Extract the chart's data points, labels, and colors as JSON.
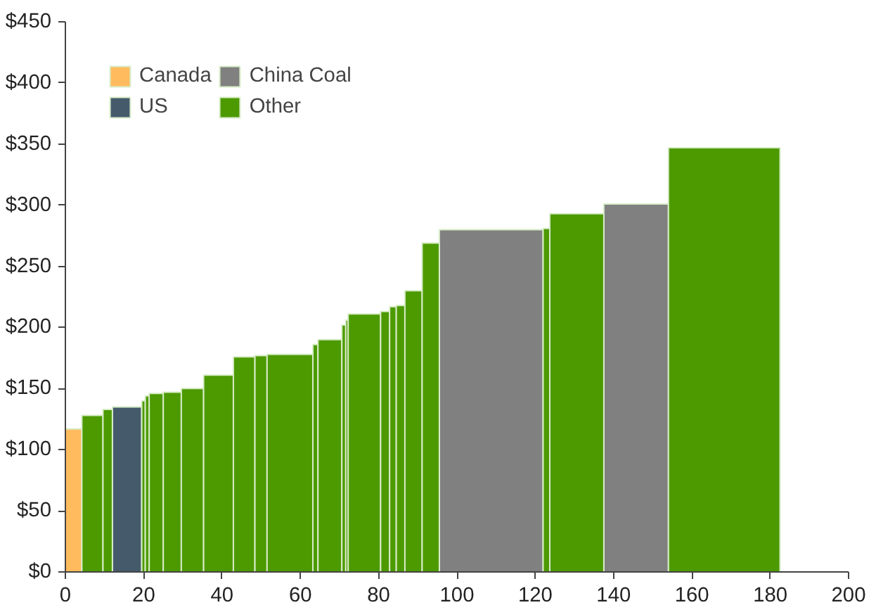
{
  "chart_data": {
    "type": "histogram",
    "bins": [
      0,
      4.2,
      9.6,
      12,
      19.5,
      20.4,
      21.4,
      25,
      29.6,
      35.3,
      42.9,
      48.4,
      51.5,
      63.2,
      64.5,
      70.6,
      71.6,
      72.2,
      80.5,
      82.8,
      84.5,
      86.7,
      91.1,
      95.5,
      122,
      123.7,
      137.5,
      154,
      182.5
    ],
    "series": [
      {
        "name": "Canada",
        "color": "#ffbb5e",
        "values": [
          117,
          null,
          null,
          null,
          null,
          null,
          null,
          null,
          null,
          null,
          null,
          null,
          null,
          null,
          null,
          null,
          null,
          null,
          null,
          null,
          null,
          null,
          null,
          null,
          null,
          null,
          null,
          null
        ]
      },
      {
        "name": "US",
        "color": "#455a6b",
        "values": [
          null,
          null,
          null,
          135,
          null,
          null,
          null,
          null,
          null,
          null,
          null,
          null,
          null,
          null,
          null,
          null,
          null,
          null,
          null,
          null,
          null,
          null,
          null,
          null,
          null,
          null,
          null,
          null
        ]
      },
      {
        "name": "China Coal",
        "color": "#808080",
        "values": [
          null,
          null,
          null,
          null,
          null,
          null,
          null,
          null,
          null,
          null,
          null,
          null,
          null,
          null,
          null,
          null,
          null,
          null,
          null,
          null,
          null,
          null,
          null,
          280,
          null,
          null,
          301,
          null
        ]
      },
      {
        "name": "Other",
        "color": "#4c9a00",
        "values": [
          null,
          128,
          133,
          null,
          140,
          144,
          146,
          147,
          150,
          161,
          176,
          177,
          178,
          186,
          190,
          202,
          206,
          211,
          213,
          217,
          218,
          230,
          269,
          null,
          281,
          293,
          null,
          347
        ]
      }
    ],
    "xlim": [
      0,
      200
    ],
    "xticks": [
      0,
      20,
      40,
      60,
      80,
      100,
      120,
      140,
      160,
      180,
      200
    ],
    "ylim": [
      0,
      450
    ],
    "yticks": [
      {
        "value": 0,
        "label": "$0"
      },
      {
        "value": 50,
        "label": "$50"
      },
      {
        "value": 100,
        "label": "$100"
      },
      {
        "value": 150,
        "label": "$150"
      },
      {
        "value": 200,
        "label": "$200"
      },
      {
        "value": 250,
        "label": "$250"
      },
      {
        "value": 300,
        "label": "$300"
      },
      {
        "value": 350,
        "label": "$350"
      },
      {
        "value": 400,
        "label": "$400"
      },
      {
        "value": 450,
        "label": "$450"
      }
    ],
    "grid": false,
    "legend": "top left"
  }
}
